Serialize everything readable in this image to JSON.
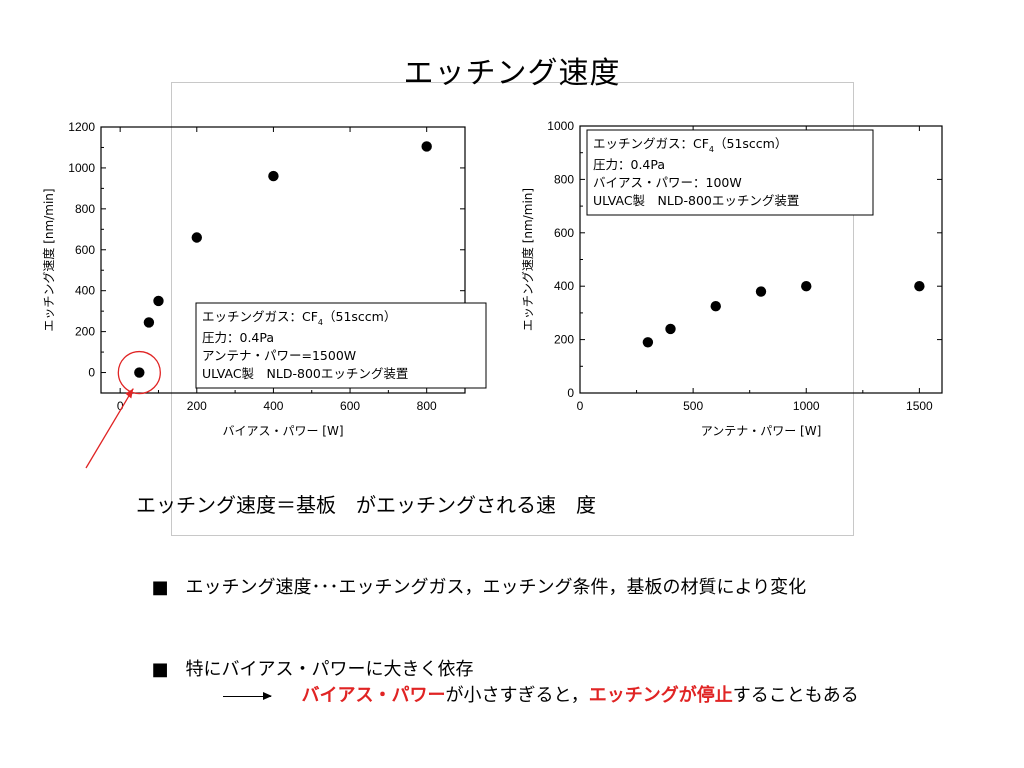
{
  "slide": {
    "title": "エッチング速度",
    "definition": "エッチング速度＝基板　がエッチングされる速　度",
    "bullet_mark": "■",
    "bullet1": "エッチング速度･･･エッチングガス，エッチング条件，基板の材質により変化",
    "bullet2": "特にバイアス・パワーに大きく依存",
    "consequence": {
      "part1": "バイアス・パワー",
      "part2": "が小さすぎると，",
      "part3": "エッチングが停止",
      "part4": "することもある"
    },
    "colors": {
      "highlight": "#e02424",
      "annotation": "#e02424",
      "frame": "#c8c8c8"
    }
  },
  "chart_data": [
    {
      "type": "scatter",
      "xlabel": "バイアス・パワー [W]",
      "ylabel": "エッチング速度 [nm/min]",
      "xlim": [
        -50,
        900
      ],
      "ylim": [
        -100,
        1200
      ],
      "xticks": [
        0,
        200,
        400,
        600,
        800
      ],
      "yticks": [
        0,
        200,
        400,
        600,
        800,
        1000,
        1200
      ],
      "x": [
        50,
        75,
        100,
        200,
        400,
        800
      ],
      "y": [
        0,
        245,
        350,
        660,
        960,
        1105
      ],
      "legend": {
        "line1_prefix": "エッチングガス：CF",
        "line1_sub": "4",
        "line1_suffix": "（51sccm）",
        "line2": "圧力：0.4Pa",
        "line3": "アンテナ・パワー=1500W",
        "line4": "ULVAC製　NLD-800エッチング装置",
        "position": "bottom-right"
      },
      "annotation": {
        "circled_point_index": 0,
        "color": "#e02424"
      }
    },
    {
      "type": "scatter",
      "xlabel": "アンテナ・パワー [W]",
      "ylabel": "エッチング速度 [nm/min]",
      "xlim": [
        0,
        1600
      ],
      "ylim": [
        0,
        1000
      ],
      "xticks": [
        0,
        500,
        1000,
        1500
      ],
      "yticks": [
        0,
        200,
        400,
        600,
        800,
        1000
      ],
      "x": [
        300,
        400,
        600,
        800,
        1000,
        1500
      ],
      "y": [
        190,
        240,
        325,
        380,
        400,
        400
      ],
      "legend": {
        "line1_prefix": "エッチングガス：CF",
        "line1_sub": "4",
        "line1_suffix": "（51sccm）",
        "line2": "圧力：0.4Pa",
        "line3": "バイアス・パワー：100W",
        "line4": "ULVAC製　NLD-800エッチング装置",
        "position": "top-left"
      }
    }
  ]
}
